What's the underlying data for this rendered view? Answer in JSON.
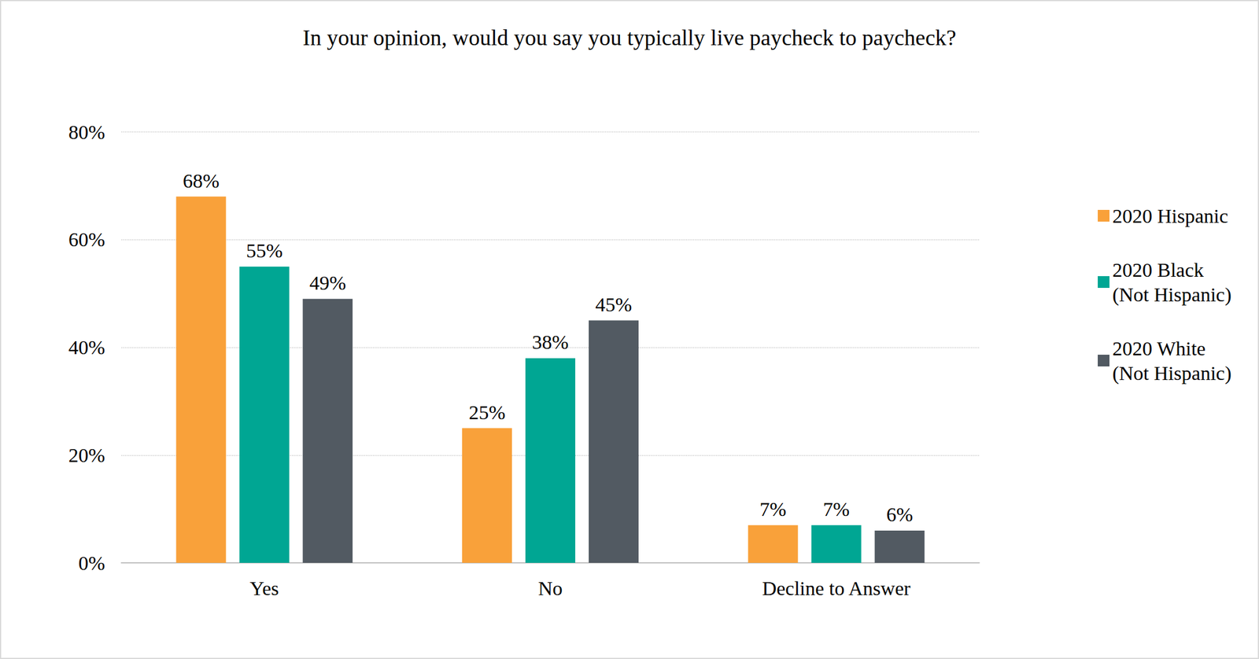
{
  "chart_data": {
    "type": "bar",
    "title": "In your opinion, would you say you typically live paycheck to paycheck?",
    "categories": [
      "Yes",
      "No",
      "Decline to Answer"
    ],
    "series": [
      {
        "name": "2020 Hispanic",
        "color": "#f9a13a",
        "values": [
          68,
          25,
          7
        ],
        "value_labels": [
          "68%",
          "25%",
          "7%"
        ]
      },
      {
        "name": "2020 Black (Not Hispanic)",
        "color": "#00a693",
        "values": [
          55,
          38,
          7
        ],
        "value_labels": [
          "55%",
          "38%",
          "7%"
        ]
      },
      {
        "name": "2020 White (Not Hispanic)",
        "color": "#525a62",
        "values": [
          49,
          45,
          6
        ],
        "value_labels": [
          "49%",
          "45%",
          "6%"
        ]
      }
    ],
    "ylim": [
      0,
      80
    ],
    "yticks": [
      {
        "value": 0,
        "label": "0%"
      },
      {
        "value": 20,
        "label": "20%"
      },
      {
        "value": 40,
        "label": "40%"
      },
      {
        "value": 60,
        "label": "60%"
      },
      {
        "value": 80,
        "label": "80%"
      }
    ],
    "grid": true,
    "legend": "right",
    "data_labels": true
  }
}
